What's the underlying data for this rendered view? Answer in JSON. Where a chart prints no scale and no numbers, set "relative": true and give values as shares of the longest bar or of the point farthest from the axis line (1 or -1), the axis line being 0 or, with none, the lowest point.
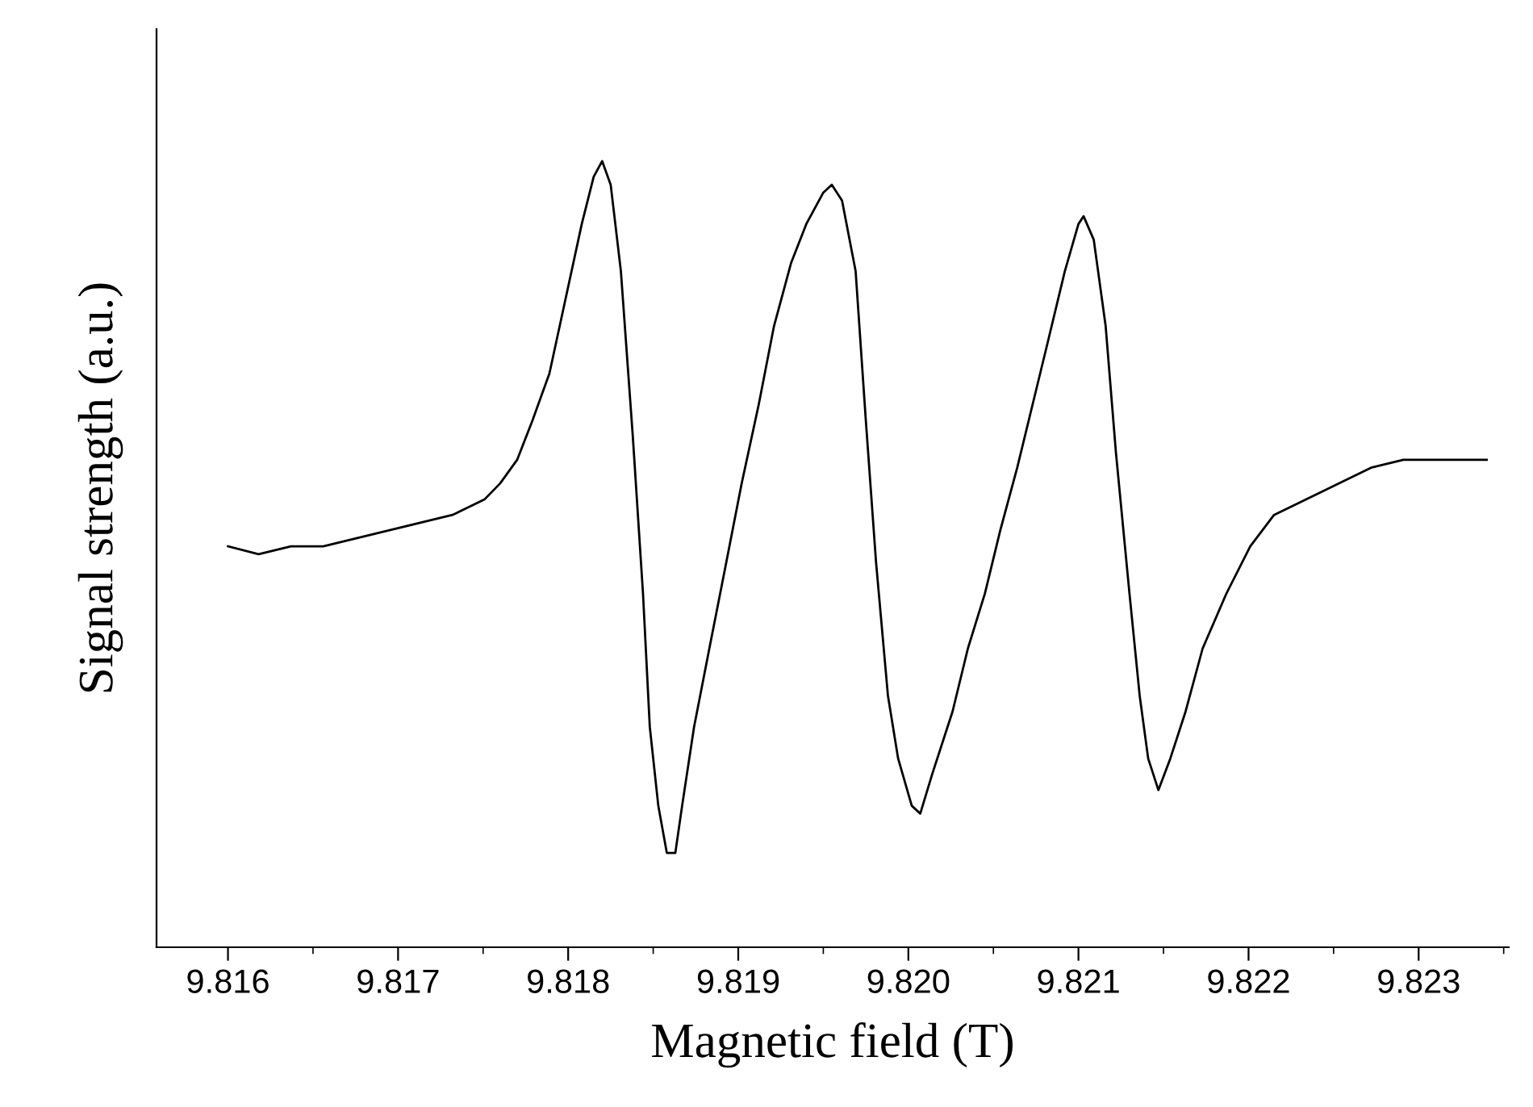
{
  "chart_data": {
    "type": "line",
    "relative": true,
    "xlabel": "Magnetic field (T)",
    "ylabel": "Signal strength (a.u.)",
    "xlim": [
      9.81558,
      9.82353
    ],
    "xticks": [
      9.816,
      9.817,
      9.818,
      9.819,
      {
        "value": 9.82,
        "label": "9.820"
      },
      9.821,
      9.822,
      9.823
    ],
    "grid": false,
    "legend": false,
    "marker": "none",
    "line_style": "solid",
    "series": [
      {
        "color": "#000000",
        "x": [
          9.816,
          9.81618,
          9.81637,
          9.81656,
          9.81675,
          9.81694,
          9.81713,
          9.81732,
          9.81751,
          9.8176,
          9.8177,
          9.81779,
          9.81789,
          9.81798,
          9.81808,
          9.81815,
          9.8182,
          9.81825,
          9.81831,
          9.81838,
          9.81844,
          9.81848,
          9.81853,
          9.81858,
          9.81863,
          9.81867,
          9.81874,
          9.81883,
          9.81893,
          9.81902,
          9.81912,
          9.81921,
          9.81931,
          9.8194,
          9.8195,
          9.81955,
          9.81961,
          9.81969,
          9.81975,
          9.81981,
          9.81988,
          9.81994,
          9.82002,
          9.82007,
          9.82014,
          9.82026,
          9.82035,
          9.82045,
          9.82054,
          9.82064,
          9.82073,
          9.82082,
          9.82092,
          9.821,
          9.82103,
          9.82109,
          9.82116,
          9.82122,
          9.8213,
          9.82136,
          9.82141,
          9.82147,
          9.82154,
          9.82163,
          9.82173,
          9.82187,
          9.82201,
          9.82215,
          9.82234,
          9.82253,
          9.82272,
          9.82291,
          9.823,
          9.8234
        ],
        "values": [
          0.51,
          0.5,
          0.51,
          0.51,
          0.52,
          0.53,
          0.54,
          0.55,
          0.57,
          0.59,
          0.62,
          0.67,
          0.73,
          0.82,
          0.92,
          0.98,
          1.0,
          0.97,
          0.86,
          0.65,
          0.45,
          0.28,
          0.18,
          0.12,
          0.12,
          0.18,
          0.28,
          0.38,
          0.49,
          0.59,
          0.69,
          0.79,
          0.87,
          0.92,
          0.96,
          0.97,
          0.95,
          0.86,
          0.67,
          0.49,
          0.32,
          0.24,
          0.18,
          0.17,
          0.22,
          0.3,
          0.38,
          0.45,
          0.53,
          0.61,
          0.69,
          0.77,
          0.86,
          0.92,
          0.93,
          0.9,
          0.79,
          0.63,
          0.45,
          0.32,
          0.24,
          0.2,
          0.24,
          0.3,
          0.38,
          0.45,
          0.51,
          0.55,
          0.57,
          0.59,
          0.61,
          0.62,
          0.62,
          0.62
        ]
      }
    ]
  }
}
